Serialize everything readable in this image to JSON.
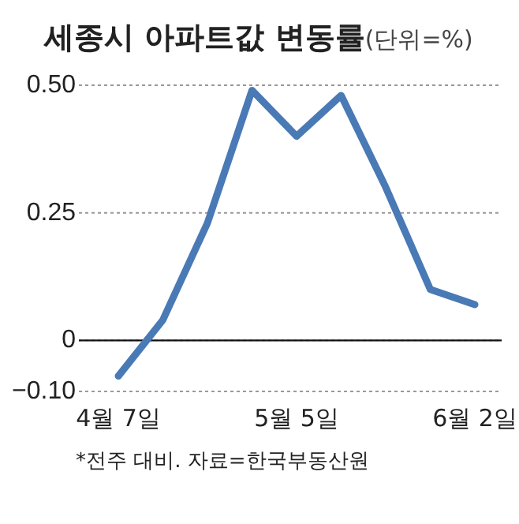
{
  "chart_data": {
    "type": "line",
    "title": "세종시 아파트값 변동률",
    "subtitle": "(단위=%)",
    "categories": [
      "4월 7일",
      null,
      null,
      null,
      "5월 5일",
      null,
      null,
      null,
      "6월 2일"
    ],
    "series": [
      {
        "color": "#4a7ab5",
        "values": [
          -0.07,
          0.04,
          0.23,
          0.49,
          0.4,
          0.48,
          0.3,
          0.1,
          0.07
        ]
      }
    ],
    "ylim": [
      -0.1,
      0.5
    ],
    "yticks": [
      {
        "value": -0.1,
        "label": "−0.10"
      },
      0,
      0.25,
      {
        "value": 0.5,
        "label": "0.50"
      }
    ],
    "grid": "y",
    "marker": "none",
    "line_style": "solid",
    "annotations": [
      "*전주 대비. 자료=한국부동산원"
    ]
  }
}
